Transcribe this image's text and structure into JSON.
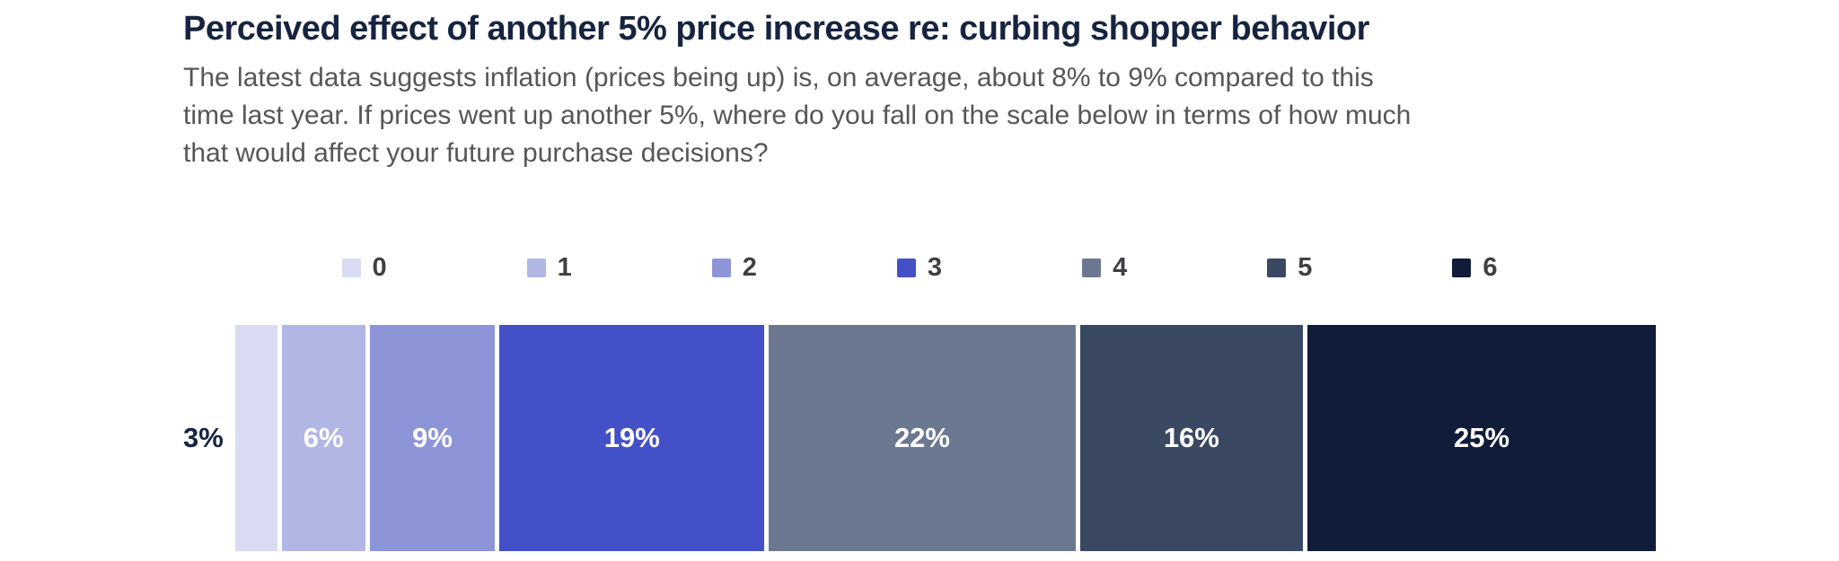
{
  "header": {
    "title": "Perceived effect of another 5% price increase re: curbing shopper behavior",
    "subtitle_lines": [
      "The latest data suggests inflation (prices being up) is, on average, about 8% to 9% compared to this",
      "time last year. If prices went up another 5%, where do you fall on the scale below in terms of how much",
      "that would affect your future purchase decisions?"
    ]
  },
  "chart_data": {
    "type": "bar",
    "variant": "horizontal-stacked",
    "title": "Perceived effect of another 5% price increase re: curbing shopper behavior",
    "unit": "%",
    "categories": [
      "0",
      "1",
      "2",
      "3",
      "4",
      "5",
      "6"
    ],
    "values": [
      3,
      6,
      9,
      19,
      22,
      16,
      25
    ],
    "legend_position": "top",
    "axis": "none",
    "series": [
      {
        "name": "0",
        "value": 3,
        "label": "3%",
        "color": "#d8dbf1",
        "label_outside": true
      },
      {
        "name": "1",
        "value": 6,
        "label": "6%",
        "color": "#b2b6e4",
        "label_outside": false
      },
      {
        "name": "2",
        "value": 9,
        "label": "9%",
        "color": "#8d95d8",
        "label_outside": false
      },
      {
        "name": "3",
        "value": 19,
        "label": "19%",
        "color": "#4450c8",
        "label_outside": false
      },
      {
        "name": "4",
        "value": 22,
        "label": "22%",
        "color": "#6c7890",
        "label_outside": false
      },
      {
        "name": "5",
        "value": 16,
        "label": "16%",
        "color": "#3a4961",
        "label_outside": false
      },
      {
        "name": "6",
        "value": 25,
        "label": "25%",
        "color": "#101c38",
        "label_outside": false
      }
    ],
    "colors": {
      "title_text": "#172440",
      "subtitle_text": "#555659",
      "legend_text": "#3f4044",
      "segment_label_text": "#ffffff",
      "outside_label_text": "#172440",
      "background": "#ffffff",
      "segment_gap": "#ffffff"
    }
  }
}
